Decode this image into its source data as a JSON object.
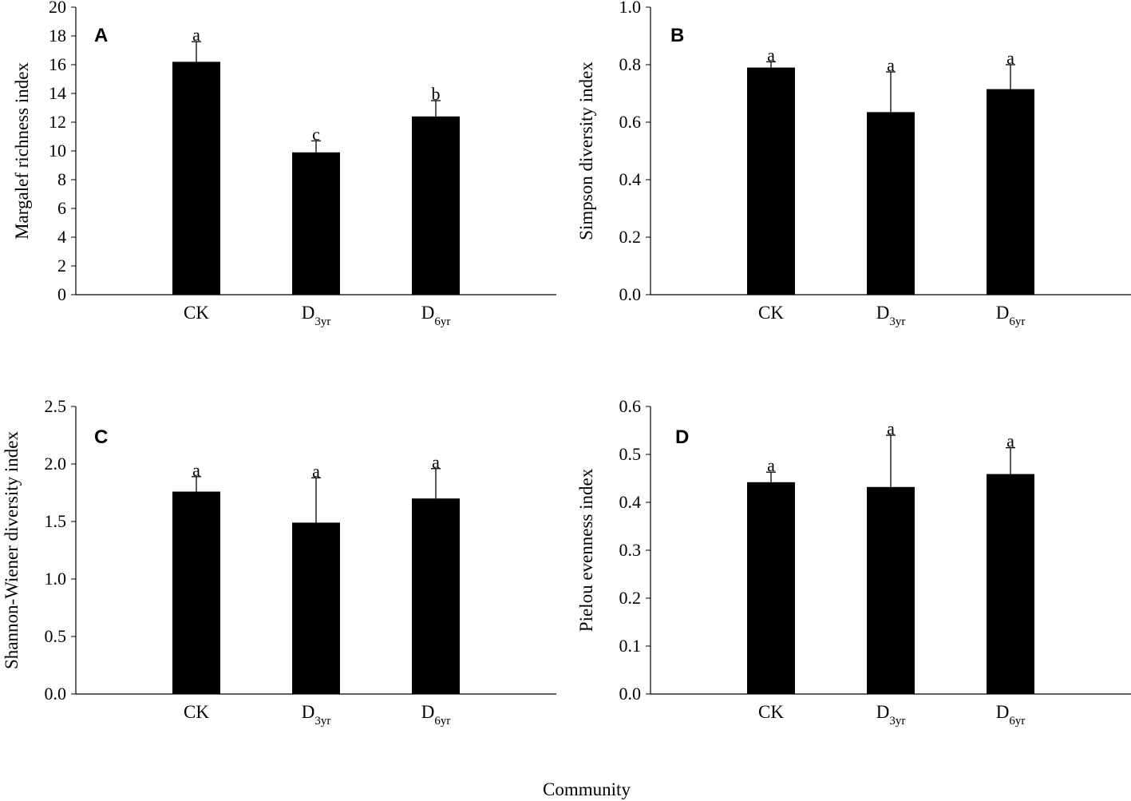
{
  "figure": {
    "x_axis_title": "Community"
  },
  "chart_data": [
    {
      "type": "bar",
      "panel": "A",
      "title": "",
      "xlabel": "",
      "ylabel": "Margalef richness index",
      "ylim": [
        0,
        20
      ],
      "yticks": [
        0,
        2,
        4,
        6,
        8,
        10,
        12,
        14,
        16,
        18,
        20
      ],
      "ytick_labels": [
        "0",
        "2",
        "4",
        "6",
        "8",
        "10",
        "12",
        "14",
        "16",
        "18",
        "20"
      ],
      "categories": [
        {
          "main": "CK",
          "sub": ""
        },
        {
          "main": "D",
          "sub": "3yr"
        },
        {
          "main": "D",
          "sub": "6yr"
        }
      ],
      "values": [
        16.2,
        9.9,
        12.4
      ],
      "errors": [
        1.4,
        0.8,
        1.1
      ],
      "significance": [
        "a",
        "c",
        "b"
      ]
    },
    {
      "type": "bar",
      "panel": "B",
      "title": "",
      "xlabel": "",
      "ylabel": "Simpson diversity index",
      "ylim": [
        0,
        1
      ],
      "yticks": [
        0,
        0.2,
        0.4,
        0.6,
        0.8,
        1.0
      ],
      "ytick_labels": [
        "0.0",
        "0.2",
        "0.4",
        "0.6",
        "0.8",
        "1.0"
      ],
      "categories": [
        {
          "main": "CK",
          "sub": ""
        },
        {
          "main": "D",
          "sub": "3yr"
        },
        {
          "main": "D",
          "sub": "6yr"
        }
      ],
      "values": [
        0.79,
        0.635,
        0.715
      ],
      "errors": [
        0.02,
        0.14,
        0.085
      ],
      "significance": [
        "a",
        "a",
        "a"
      ]
    },
    {
      "type": "bar",
      "panel": "C",
      "title": "",
      "xlabel": "",
      "ylabel": "Shannon-Wiener diversity index",
      "ylim": [
        0,
        2.5
      ],
      "yticks": [
        0,
        0.5,
        1.0,
        1.5,
        2.0,
        2.5
      ],
      "ytick_labels": [
        "0.0",
        "0.5",
        "1.0",
        "1.5",
        "2.0",
        "2.5"
      ],
      "categories": [
        {
          "main": "CK",
          "sub": ""
        },
        {
          "main": "D",
          "sub": "3yr"
        },
        {
          "main": "D",
          "sub": "6yr"
        }
      ],
      "values": [
        1.76,
        1.49,
        1.7
      ],
      "errors": [
        0.13,
        0.39,
        0.26
      ],
      "significance": [
        "a",
        "a",
        "a"
      ]
    },
    {
      "type": "bar",
      "panel": "D",
      "title": "",
      "xlabel": "",
      "ylabel": "Pielou evenness index",
      "ylim": [
        0,
        0.6
      ],
      "yticks": [
        0,
        0.1,
        0.2,
        0.3,
        0.4,
        0.5,
        0.6
      ],
      "ytick_labels": [
        "0.0",
        "0.1",
        "0.2",
        "0.3",
        "0.4",
        "0.5",
        "0.6"
      ],
      "categories": [
        {
          "main": "CK",
          "sub": ""
        },
        {
          "main": "D",
          "sub": "3yr"
        },
        {
          "main": "D",
          "sub": "6yr"
        }
      ],
      "values": [
        0.442,
        0.432,
        0.459
      ],
      "errors": [
        0.021,
        0.108,
        0.055
      ],
      "significance": [
        "a",
        "a",
        "a"
      ]
    }
  ]
}
